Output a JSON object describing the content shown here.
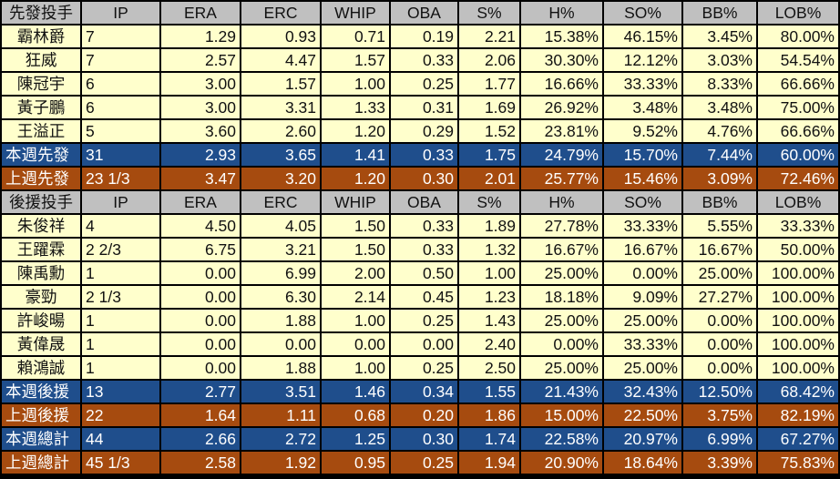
{
  "headers": {
    "starters": [
      "先發投手",
      "IP",
      "ERA",
      "ERC",
      "WHIP",
      "OBA",
      "S%",
      "H%",
      "SO%",
      "BB%",
      "LOB%"
    ],
    "relievers": [
      "後援投手",
      "IP",
      "ERA",
      "ERC",
      "WHIP",
      "OBA",
      "S%",
      "H%",
      "SO%",
      "BB%",
      "LOB%"
    ]
  },
  "starters": [
    [
      "霸林爵",
      "7",
      "1.29",
      "0.93",
      "0.71",
      "0.19",
      "2.21",
      "15.38%",
      "46.15%",
      "3.45%",
      "80.00%"
    ],
    [
      "狂威",
      "7",
      "2.57",
      "4.47",
      "1.57",
      "0.33",
      "2.06",
      "30.30%",
      "12.12%",
      "3.03%",
      "54.54%"
    ],
    [
      "陳冠宇",
      "6",
      "3.00",
      "1.57",
      "1.00",
      "0.25",
      "1.77",
      "16.66%",
      "33.33%",
      "8.33%",
      "66.66%"
    ],
    [
      "黃子鵬",
      "6",
      "3.00",
      "3.31",
      "1.33",
      "0.31",
      "1.69",
      "26.92%",
      "3.48%",
      "3.48%",
      "75.00%"
    ],
    [
      "王溢正",
      "5",
      "3.60",
      "2.60",
      "1.20",
      "0.29",
      "1.52",
      "23.81%",
      "9.52%",
      "4.76%",
      "66.66%"
    ]
  ],
  "starters_this_week": [
    "本週先發",
    "31",
    "2.93",
    "3.65",
    "1.41",
    "0.33",
    "1.75",
    "24.79%",
    "15.70%",
    "7.44%",
    "60.00%"
  ],
  "starters_last_week": [
    "上週先發",
    "23 1/3",
    "3.47",
    "3.20",
    "1.20",
    "0.30",
    "2.01",
    "25.77%",
    "15.46%",
    "3.09%",
    "72.46%"
  ],
  "relievers": [
    [
      "朱俊祥",
      "4",
      "4.50",
      "4.05",
      "1.50",
      "0.33",
      "1.89",
      "27.78%",
      "33.33%",
      "5.55%",
      "33.33%"
    ],
    [
      "王躍霖",
      "2 2/3",
      "6.75",
      "3.21",
      "1.50",
      "0.33",
      "1.32",
      "16.67%",
      "16.67%",
      "16.67%",
      "50.00%"
    ],
    [
      "陳禹勳",
      "1",
      "0.00",
      "6.99",
      "2.00",
      "0.50",
      "1.00",
      "25.00%",
      "0.00%",
      "25.00%",
      "100.00%"
    ],
    [
      "豪勁",
      "2 1/3",
      "0.00",
      "6.30",
      "2.14",
      "0.45",
      "1.23",
      "18.18%",
      "9.09%",
      "27.27%",
      "100.00%"
    ],
    [
      "許峻暘",
      "1",
      "0.00",
      "1.88",
      "1.00",
      "0.25",
      "1.43",
      "25.00%",
      "25.00%",
      "0.00%",
      "100.00%"
    ],
    [
      "黃偉晟",
      "1",
      "0.00",
      "0.00",
      "0.00",
      "0.00",
      "2.40",
      "0.00%",
      "33.33%",
      "0.00%",
      "100.00%"
    ],
    [
      "賴鴻誠",
      "1",
      "0.00",
      "1.88",
      "1.00",
      "0.25",
      "2.50",
      "25.00%",
      "25.00%",
      "0.00%",
      "100.00%"
    ]
  ],
  "relievers_this_week": [
    "本週後援",
    "13",
    "2.77",
    "3.51",
    "1.46",
    "0.34",
    "1.55",
    "21.43%",
    "32.43%",
    "12.50%",
    "68.42%"
  ],
  "relievers_last_week": [
    "上週後援",
    "22",
    "1.64",
    "1.11",
    "0.68",
    "0.20",
    "1.86",
    "15.00%",
    "22.50%",
    "3.75%",
    "82.19%"
  ],
  "total_this_week": [
    "本週總計",
    "44",
    "2.66",
    "2.72",
    "1.25",
    "0.30",
    "1.74",
    "22.58%",
    "20.97%",
    "6.99%",
    "67.27%"
  ],
  "total_last_week": [
    "上週總計",
    "45 1/3",
    "2.58",
    "1.92",
    "0.95",
    "0.25",
    "1.94",
    "20.90%",
    "18.64%",
    "3.39%",
    "75.83%"
  ],
  "colors": {
    "header_bg": "#c0c0c0",
    "row_bg": "#ffffcc",
    "this_week_bg": "#1f4e8c",
    "last_week_bg": "#a64b0f"
  }
}
